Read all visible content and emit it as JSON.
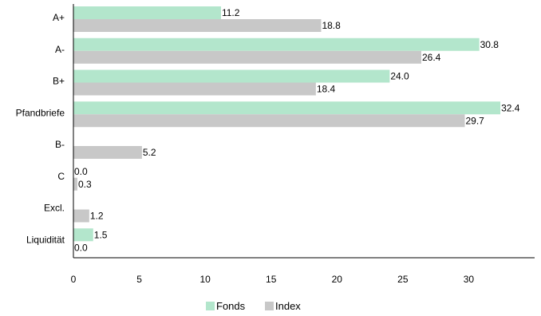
{
  "chart_data": {
    "type": "bar",
    "orientation": "horizontal",
    "categories": [
      "A+",
      "A-",
      "B+",
      "Pfandbriefe",
      "B-",
      "C",
      "Excl.",
      "Liquidität"
    ],
    "series": [
      {
        "name": "Fonds",
        "values": [
          11.2,
          30.8,
          24.0,
          32.4,
          null,
          0.0,
          null,
          1.5
        ],
        "labels": [
          "11.2",
          "30.8",
          "24.0",
          "32.4",
          "",
          "0.0",
          "",
          "1.5"
        ],
        "color": "#b3e6cc"
      },
      {
        "name": "Index",
        "values": [
          18.8,
          26.4,
          18.4,
          29.7,
          5.2,
          0.3,
          1.2,
          0.0
        ],
        "labels": [
          "18.8",
          "26.4",
          "18.4",
          "29.7",
          "5.2",
          "0.3",
          "1.2",
          "0.0"
        ],
        "color": "#c8c8c8"
      }
    ],
    "xlim": [
      0,
      35
    ],
    "xticks": [
      "0",
      "5",
      "10",
      "15",
      "20",
      "25",
      "30"
    ],
    "xtick_values": [
      0,
      5,
      10,
      15,
      20,
      25,
      30
    ],
    "grid": false,
    "legend_position": "bottom"
  }
}
